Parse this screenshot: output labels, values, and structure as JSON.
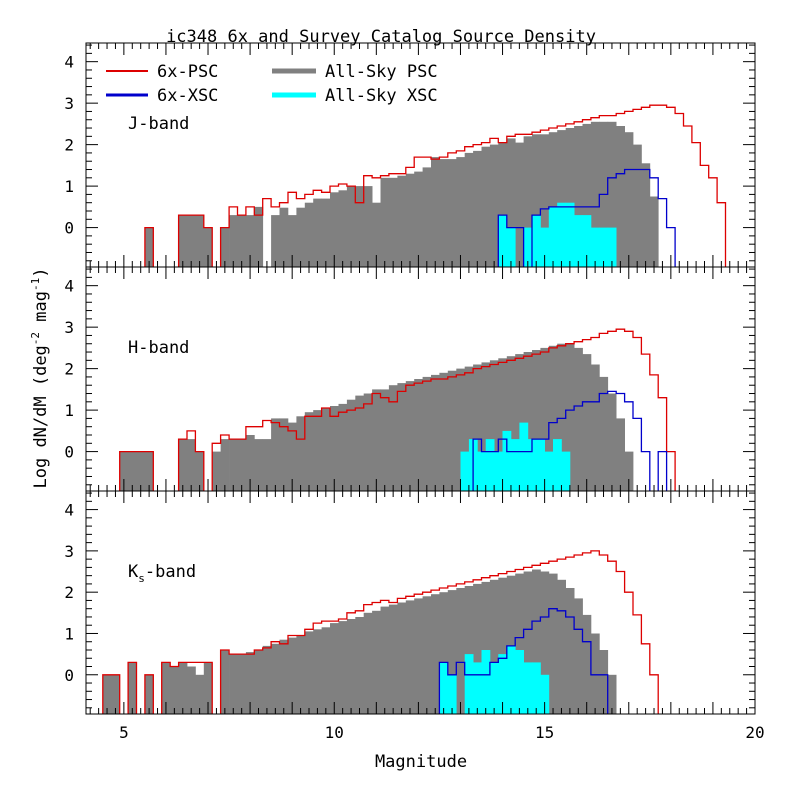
{
  "chart_data": {
    "type": "bar",
    "title": "ic348  6x and Survey Catalog Source Density",
    "xlabel": "Magnitude",
    "ylabel": "Log dN/dM (deg",
    "ylabel_sup1": "-2",
    "ylabel_mid": " mag",
    "ylabel_sup2": "-1",
    "ylabel_end": ")",
    "xlim": [
      4.1,
      20
    ],
    "ylim": [
      -0.95,
      4.45
    ],
    "xticks": [
      "5",
      "10",
      "15",
      "20"
    ],
    "yticks": [
      "0",
      "1",
      "2",
      "3",
      "4"
    ],
    "grid": false,
    "legend_position": "top-left",
    "legend": [
      {
        "label": "6x-PSC",
        "color": "#dd0000"
      },
      {
        "label": "6x-XSC",
        "color": "#0000cc"
      },
      {
        "label": "All-Sky PSC",
        "color": "#808080"
      },
      {
        "label": "All-Sky XSC",
        "color": "#00ffff"
      }
    ],
    "colors": {
      "psc6x": "#dd0000",
      "xsc6x": "#0000cc",
      "allsky_psc": "#808080",
      "allsky_xsc": "#00ffff"
    },
    "bin_width": 0.2,
    "panels": [
      {
        "label": "J-band",
        "sub": "",
        "suffix": "",
        "allsky_psc": {
          "start": 5.5,
          "values": [
            0,
            null,
            null,
            null,
            0.3,
            0.3,
            0.3,
            0,
            null,
            0,
            0.3,
            0.3,
            0.3,
            0.5,
            null,
            0.3,
            0.48,
            0.3,
            0.48,
            0.6,
            0.7,
            0.7,
            0.85,
            0.9,
            1.0,
            1.0,
            1.0,
            0.6,
            1.2,
            1.2,
            1.25,
            1.3,
            1.35,
            1.45,
            1.7,
            1.65,
            1.65,
            1.7,
            1.8,
            1.85,
            1.95,
            2.0,
            2.05,
            2.15,
            2.05,
            2.2,
            2.25,
            2.25,
            2.3,
            2.35,
            2.4,
            2.45,
            2.5,
            2.55,
            2.55,
            2.55,
            2.45,
            2.3,
            2.0,
            1.55,
            0.75
          ]
        },
        "psc6x": {
          "start": 5.5,
          "values": [
            0,
            null,
            null,
            null,
            0.3,
            0.3,
            0.3,
            0,
            null,
            0,
            0.5,
            0.3,
            0.5,
            0.3,
            0.7,
            0.5,
            0.6,
            0.85,
            0.7,
            0.8,
            0.9,
            0.85,
            1.0,
            1.05,
            1.0,
            0.6,
            1.25,
            1.2,
            1.25,
            1.3,
            1.3,
            1.45,
            1.7,
            1.7,
            1.65,
            1.7,
            1.8,
            1.85,
            1.95,
            2.0,
            2.05,
            2.15,
            2.05,
            2.2,
            2.25,
            2.25,
            2.3,
            2.35,
            2.4,
            2.45,
            2.5,
            2.55,
            2.6,
            2.65,
            2.7,
            2.7,
            2.75,
            2.8,
            2.85,
            2.9,
            2.95,
            2.95,
            2.9,
            2.75,
            2.45,
            2.05,
            1.5,
            1.2,
            0.6
          ]
        },
        "allsky_xsc": {
          "start": 13.9,
          "values": [
            0.3,
            0,
            null,
            0,
            0.3,
            0,
            0.5,
            0.6,
            0.6,
            0.3,
            0.3,
            0,
            0,
            0
          ]
        },
        "xsc6x": {
          "start": 13.9,
          "values": [
            0.3,
            0,
            0,
            null,
            0.3,
            0.45,
            0.5,
            0.5,
            0.5,
            0.5,
            0.5,
            0.5,
            0.8,
            1.2,
            1.3,
            1.4,
            1.4,
            1.4,
            1.2,
            0.7,
            0
          ]
        }
      },
      {
        "label": "H-band",
        "sub": "",
        "suffix": "",
        "allsky_psc": {
          "start": 4.9,
          "values": [
            0,
            0,
            0,
            0,
            null,
            null,
            null,
            0.3,
            0.3,
            0,
            null,
            0,
            0.3,
            0.3,
            0.3,
            0.4,
            0.3,
            0.3,
            0.8,
            0.8,
            0.7,
            0.85,
            0.95,
            1.0,
            1.05,
            1.1,
            1.15,
            1.25,
            1.35,
            1.4,
            1.5,
            1.5,
            1.6,
            1.65,
            1.7,
            1.75,
            1.8,
            1.85,
            1.9,
            1.95,
            2.0,
            2.05,
            2.1,
            2.15,
            2.2,
            2.25,
            2.3,
            2.35,
            2.4,
            2.45,
            2.5,
            2.55,
            2.6,
            2.6,
            2.5,
            2.35,
            2.1,
            1.8,
            1.4,
            0.8,
            0
          ]
        },
        "psc6x": {
          "start": 4.9,
          "values": [
            0,
            0,
            0,
            0,
            null,
            null,
            null,
            0.3,
            0.5,
            0,
            null,
            0.2,
            0.4,
            0.3,
            0.3,
            0.6,
            0.6,
            0.75,
            0.7,
            0.6,
            0.5,
            0.3,
            0.85,
            0.85,
            1.05,
            0.85,
            0.95,
            1.0,
            1.05,
            1.15,
            1.4,
            1.3,
            1.2,
            1.45,
            1.6,
            1.65,
            1.7,
            1.75,
            1.75,
            1.8,
            1.85,
            1.9,
            2.0,
            2.05,
            2.1,
            2.15,
            2.2,
            2.25,
            2.3,
            2.35,
            2.4,
            2.5,
            2.55,
            2.6,
            2.65,
            2.7,
            2.75,
            2.85,
            2.9,
            2.95,
            2.9,
            2.75,
            2.35,
            1.85,
            1.3,
            0
          ]
        },
        "allsky_xsc": {
          "start": 13.0,
          "values": [
            0,
            0.3,
            0,
            0.3,
            0,
            0.5,
            0.3,
            0.7,
            0.3,
            0.3,
            0,
            0.3,
            0
          ]
        },
        "xsc6x": {
          "start": 13.3,
          "values": [
            0.3,
            0,
            0,
            0.3,
            0,
            0,
            0,
            0.3,
            0.3,
            0.7,
            0.8,
            1.0,
            1.1,
            1.2,
            1.2,
            1.4,
            1.45,
            1.4,
            1.2,
            0.8,
            0,
            null,
            0
          ]
        }
      },
      {
        "label": "K",
        "sub": "s",
        "suffix": "-band",
        "allsky_psc": {
          "start": 4.5,
          "values": [
            0,
            0,
            null,
            0.3,
            null,
            0,
            null,
            0.3,
            0.2,
            0.3,
            0.2,
            0,
            0.3,
            null,
            0.6,
            0.5,
            0.5,
            0.55,
            0.6,
            0.7,
            0.75,
            0.85,
            0.9,
            0.95,
            1.05,
            1.1,
            1.15,
            1.25,
            1.3,
            1.35,
            1.4,
            1.5,
            1.55,
            1.65,
            1.7,
            1.75,
            1.8,
            1.85,
            1.9,
            1.95,
            2.0,
            2.05,
            2.1,
            2.15,
            2.2,
            2.25,
            2.3,
            2.35,
            2.4,
            2.45,
            2.5,
            2.55,
            2.5,
            2.45,
            2.3,
            2.1,
            1.85,
            1.45,
            1.0,
            0.6,
            0
          ]
        },
        "psc6x": {
          "start": 4.5,
          "values": [
            0,
            0,
            null,
            0.3,
            null,
            0,
            null,
            0.3,
            0.2,
            0.3,
            0.3,
            0.3,
            0.3,
            null,
            0.6,
            0.5,
            0.5,
            0.5,
            0.6,
            0.65,
            0.8,
            0.75,
            0.95,
            0.95,
            1.1,
            1.25,
            1.3,
            1.3,
            1.35,
            1.5,
            1.55,
            1.7,
            1.75,
            1.8,
            1.75,
            1.85,
            1.9,
            1.95,
            2.0,
            2.05,
            2.1,
            2.15,
            2.2,
            2.25,
            2.3,
            2.35,
            2.4,
            2.45,
            2.5,
            2.55,
            2.6,
            2.65,
            2.7,
            2.75,
            2.8,
            2.85,
            2.9,
            2.95,
            3.0,
            2.9,
            2.75,
            2.5,
            2.0,
            1.45,
            0.75,
            0
          ]
        },
        "allsky_xsc": {
          "start": 12.5,
          "values": [
            0.3,
            0,
            null,
            0.5,
            0.3,
            0.6,
            0.3,
            0.5,
            0.7,
            0.6,
            0.3,
            0.3,
            0
          ]
        },
        "xsc6x": {
          "start": 12.5,
          "values": [
            0.3,
            0,
            0.3,
            0,
            0,
            0,
            0.3,
            0.4,
            0.7,
            0.9,
            1.1,
            1.3,
            1.4,
            1.6,
            1.55,
            1.4,
            1.1,
            0.8,
            0,
            0
          ]
        }
      }
    ]
  }
}
